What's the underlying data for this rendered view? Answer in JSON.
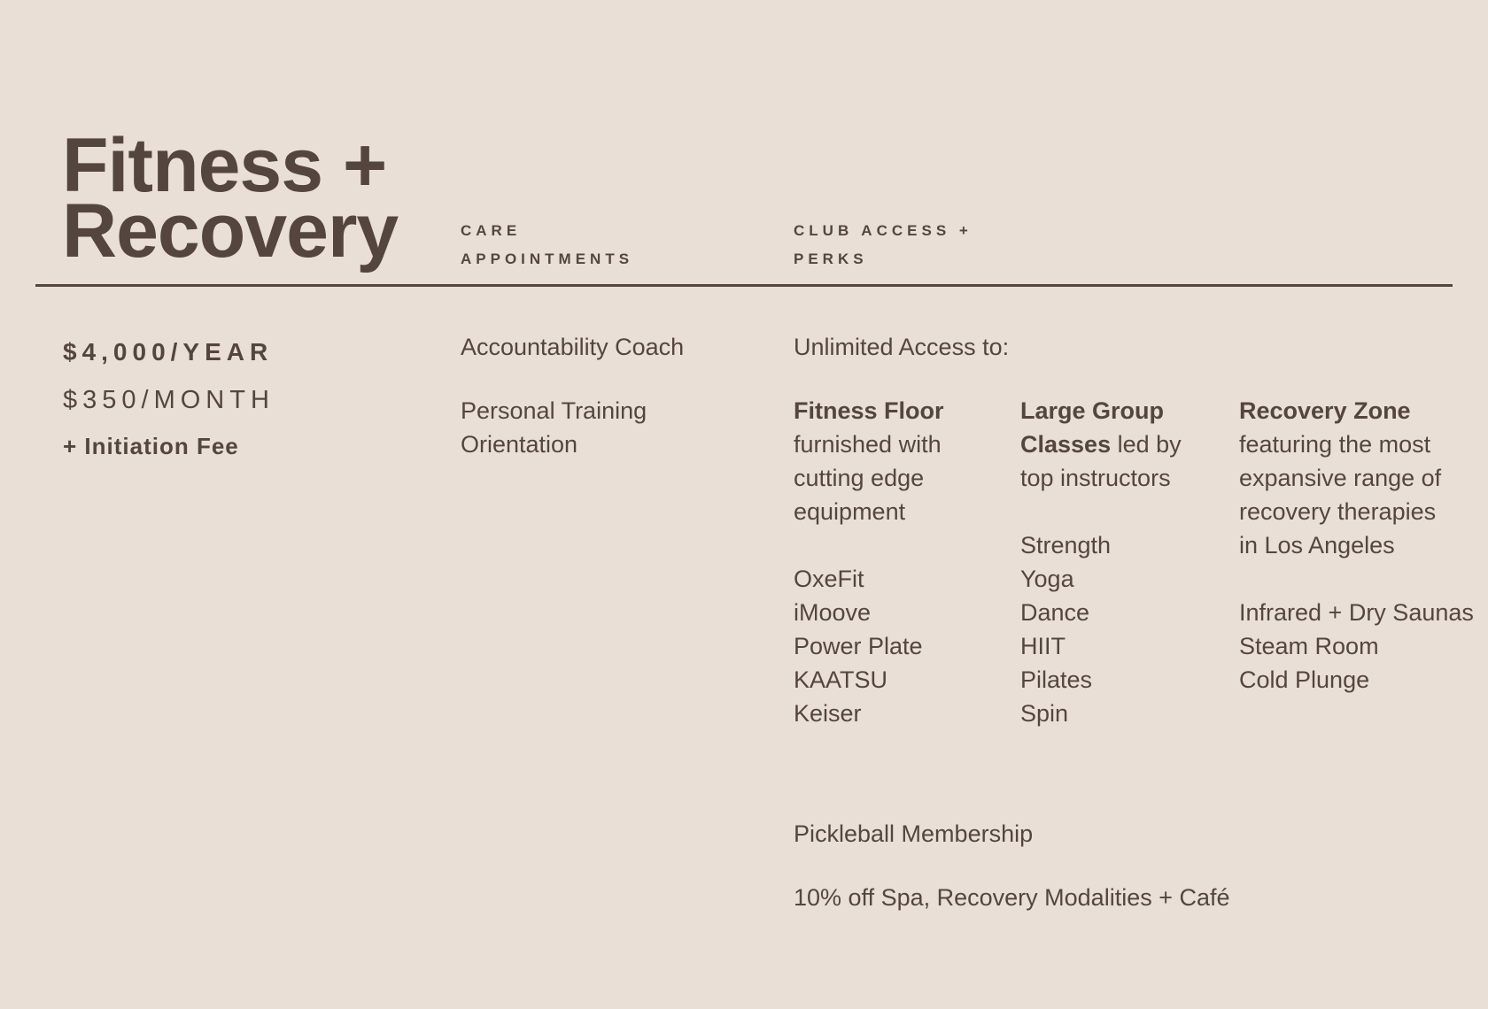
{
  "title": {
    "line1": "Fitness +",
    "line2": "Recovery"
  },
  "headers": {
    "care": {
      "line1": "CARE",
      "line2": "APPOINTMENTS"
    },
    "club": {
      "line1": "CLUB ACCESS +",
      "line2": "PERKS"
    }
  },
  "pricing": {
    "yearly": "$4,000/YEAR",
    "monthly": "$350/MONTH",
    "fee": "+ Initiation Fee"
  },
  "care": {
    "item1": "Accountability Coach",
    "item2_line1": "Personal Training",
    "item2_line2": "Orientation"
  },
  "club": {
    "intro": "Unlimited Access to:",
    "fitness_floor": {
      "heading": "Fitness Floor",
      "desc": [
        "furnished with",
        "cutting edge",
        "equipment"
      ],
      "items": [
        "OxeFit",
        "iMoove",
        "Power Plate",
        "KAATSU",
        "Keiser"
      ]
    },
    "group_classes": {
      "heading_line1": "Large Group",
      "heading_line2": "Classes",
      "desc_inline": " led by",
      "desc": [
        "top instructors"
      ],
      "items": [
        "Strength",
        "Yoga",
        "Dance",
        "HIIT",
        "Pilates",
        "Spin"
      ]
    },
    "recovery_zone": {
      "heading": "Recovery Zone",
      "desc": [
        "featuring the most",
        "expansive range of",
        "recovery therapies",
        "in Los Angeles"
      ],
      "items": [
        "Infrared + Dry Saunas",
        "Steam Room",
        "Cold Plunge"
      ]
    },
    "perk1": "Pickleball Membership",
    "perk2": "10% off Spa, Recovery Modalities + Café"
  },
  "colors": {
    "background": "#e9dfd7",
    "text": "#54463f"
  }
}
